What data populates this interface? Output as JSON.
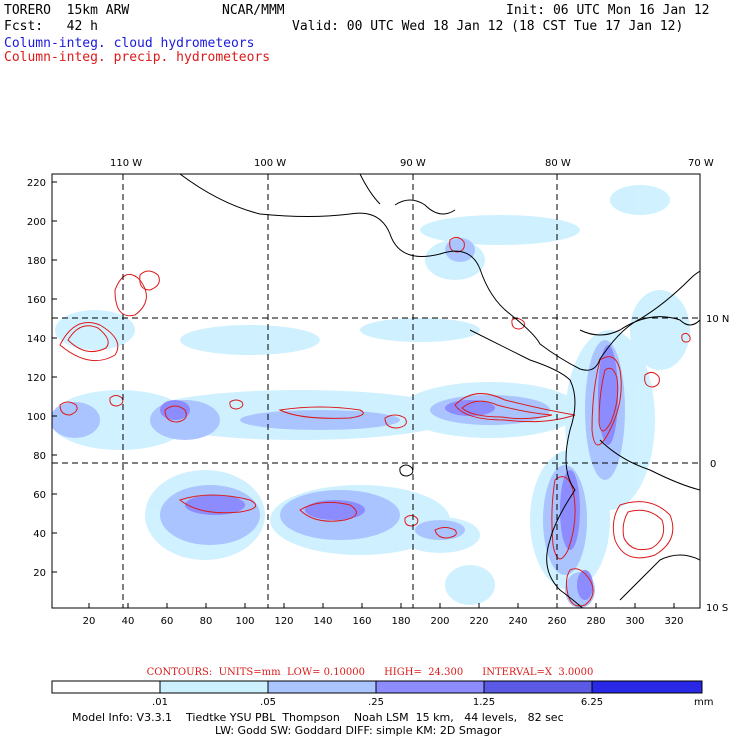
{
  "header": {
    "model": "TORERO  15km ARW",
    "org": "NCAR/MMM",
    "init": "Init: 06 UTC Mon 16 Jan 12",
    "fcst": "Fcst:   42 h",
    "valid": "Valid: 00 UTC Wed 18 Jan 12 (18 CST Tue 17 Jan 12)",
    "field1": "Column-integ. cloud hydrometeors",
    "field2": "Column-integ. precip. hydrometeors"
  },
  "map": {
    "lon_labels": [
      "110 W",
      "100 W",
      "90 W",
      "80 W",
      "70 W"
    ],
    "lat_labels": [
      "10 N",
      "0",
      "10 S"
    ],
    "grid_y_labels": [
      "220",
      "200",
      "180",
      "160",
      "140",
      "120",
      "100",
      "80",
      "60",
      "40",
      "20"
    ],
    "grid_x_labels": [
      "20",
      "40",
      "60",
      "80",
      "100",
      "120",
      "140",
      "160",
      "180",
      "200",
      "220",
      "240",
      "260",
      "280",
      "300",
      "320"
    ],
    "shade_colors": [
      "#ffffff",
      "#cdf0ff",
      "#aac4ff",
      "#8c8cff",
      "#5a5ae6",
      "#2828e6"
    ],
    "contour_color": "#dc1a1a",
    "coast_color": "#000000"
  },
  "contour_info": {
    "text": "CONTOURS:  UNITS=mm  LOW= 0.10000      HIGH=  24.300      INTERVAL=X  3.0000"
  },
  "colorbar": {
    "labels": [
      ".01",
      ".05",
      ".25",
      "1.25",
      "6.25"
    ],
    "unit": "mm"
  },
  "model_info": {
    "line1": "Model Info: V3.3.1    Tiedtke YSU PBL  Thompson    Noah LSM  15 km,   44 levels,   82 sec",
    "line2": "LW: Godd SW: Goddard DIFF: simple KM: 2D Smagor"
  }
}
